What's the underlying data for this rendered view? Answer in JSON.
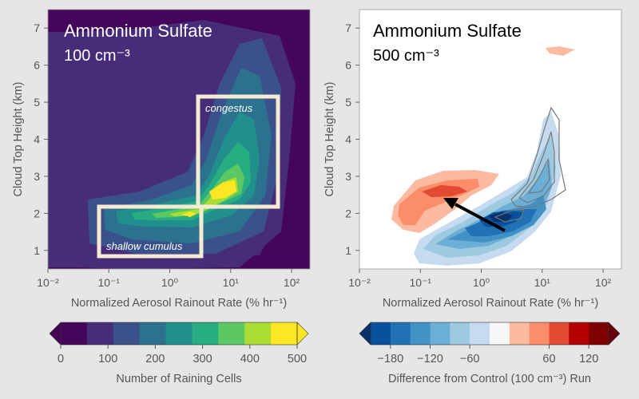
{
  "chart_data": [
    {
      "type": "heatmap",
      "title": "Ammonium Sulfate",
      "subtitle": "100 cm⁻³",
      "xlabel": "Normalized Aerosol Rainout Rate (% hr⁻¹)",
      "ylabel": "Cloud Top Height (km)",
      "x_scale": "log",
      "xlim": [
        0.01,
        200
      ],
      "ylim": [
        0.5,
        7.5
      ],
      "x_ticks": [
        "10⁻²",
        "10⁻¹",
        "10⁰",
        "10¹",
        "10²"
      ],
      "y_ticks": [
        "1",
        "2",
        "3",
        "4",
        "5",
        "6",
        "7"
      ],
      "colorbar": {
        "label": "Number of Raining Cells",
        "min": 0,
        "max": 500,
        "step": 50,
        "ticks": [
          0,
          100,
          200,
          300,
          400,
          500
        ],
        "colors": [
          "#44065a",
          "#472c7a",
          "#3b518b",
          "#2c718e",
          "#21908d",
          "#27ad81",
          "#5cc863",
          "#aadc32",
          "#fde725"
        ],
        "under_color": "#440154",
        "over_color": "#fde725"
      },
      "peaks": [
        {
          "x": 2.0,
          "y": 1.9,
          "value": 470
        },
        {
          "x": 12.0,
          "y": 2.8,
          "value": 500
        }
      ],
      "annotations": [
        {
          "label": "shallow cumulus",
          "x_range": [
            0.07,
            4.0
          ],
          "y_range": [
            0.8,
            2.2
          ]
        },
        {
          "label": "congestus",
          "x_range": [
            3.5,
            70.0
          ],
          "y_range": [
            2.1,
            5.2
          ]
        }
      ]
    },
    {
      "type": "heatmap",
      "title": "Ammonium Sulfate",
      "subtitle": "500 cm⁻³",
      "xlabel": "Normalized Aerosol Rainout Rate (% hr⁻¹)",
      "ylabel": "Cloud Top Height (km)",
      "x_scale": "log",
      "xlim": [
        0.01,
        200
      ],
      "ylim": [
        0.5,
        7.5
      ],
      "x_ticks": [
        "10⁻²",
        "10⁻¹",
        "10⁰",
        "10¹",
        "10²"
      ],
      "y_ticks": [
        "1",
        "2",
        "3",
        "4",
        "5",
        "6",
        "7"
      ],
      "colorbar": {
        "label": "Difference from Control (100 cm⁻³) Run",
        "min": -210,
        "max": 150,
        "step": 30,
        "ticks": [
          -180,
          -120,
          -60,
          60,
          120
        ],
        "colors": [
          "#08519c",
          "#2171b5",
          "#4292c6",
          "#6baed6",
          "#9ecae1",
          "#c6dbef",
          "#f7f7f7",
          "#fcbba1",
          "#fc8d6a",
          "#e34a33",
          "#b30000",
          "#7f0000"
        ],
        "under_color": "#08306b",
        "over_color": "#67000d"
      },
      "peaks": [
        {
          "x": 1.8,
          "y": 1.95,
          "value": -200
        },
        {
          "x": 0.3,
          "y": 2.6,
          "value": 110
        },
        {
          "x": 0.07,
          "y": 2.0,
          "value": 90
        }
      ],
      "arrow": {
        "from": {
          "x": 3.5,
          "y": 1.5
        },
        "to": {
          "x": 0.17,
          "y": 2.45
        }
      },
      "contours": "control-run congestus outline (gray lines)"
    }
  ]
}
